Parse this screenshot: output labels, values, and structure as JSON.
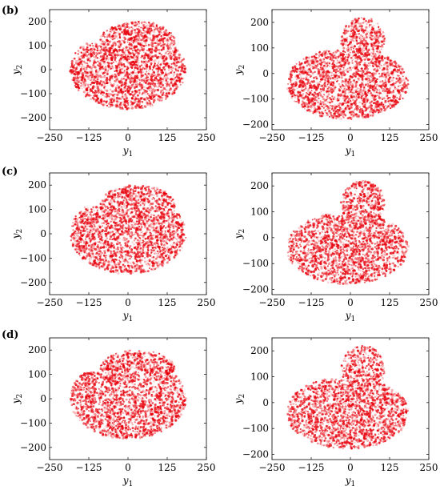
{
  "panel_labels": [
    "(b)",
    "(c)",
    "(d)"
  ],
  "chart_data": [
    {
      "type": "scatter",
      "panel": "(b)",
      "variant": 0,
      "title": "",
      "xlabel": "y",
      "xlabel_sub": "1",
      "ylabel": "y",
      "ylabel_sub": "2",
      "xlim": [
        -250,
        250
      ],
      "ylim": [
        -250,
        250
      ],
      "xticks": [
        "-250",
        "-125",
        "0",
        "125",
        "250"
      ],
      "yticks": [
        "-200",
        "-100",
        "0",
        "100",
        "200"
      ],
      "color": "#e8000b",
      "grid": false,
      "n_points": 2200
    },
    {
      "type": "scatter",
      "panel": "(b)",
      "variant": 1,
      "title": "",
      "xlabel": "y",
      "xlabel_sub": "1",
      "ylabel": "y",
      "ylabel_sub": "2",
      "xlim": [
        -250,
        250
      ],
      "ylim": [
        -220,
        250
      ],
      "xticks": [
        "-250",
        "-125",
        "0",
        "125",
        "250"
      ],
      "yticks": [
        "-200",
        "-100",
        "0",
        "100",
        "200"
      ],
      "color": "#e8000b",
      "grid": false,
      "n_points": 2200
    },
    {
      "type": "scatter",
      "panel": "(c)",
      "variant": 0,
      "title": "",
      "xlabel": "y",
      "xlabel_sub": "1",
      "ylabel": "y",
      "ylabel_sub": "2",
      "xlim": [
        -250,
        250
      ],
      "ylim": [
        -250,
        250
      ],
      "xticks": [
        "-250",
        "-125",
        "0",
        "125",
        "250"
      ],
      "yticks": [
        "-200",
        "-100",
        "0",
        "100",
        "200"
      ],
      "color": "#e8000b",
      "grid": false,
      "n_points": 2200
    },
    {
      "type": "scatter",
      "panel": "(c)",
      "variant": 1,
      "title": "",
      "xlabel": "y",
      "xlabel_sub": "1",
      "ylabel": "y",
      "ylabel_sub": "2",
      "xlim": [
        -250,
        250
      ],
      "ylim": [
        -220,
        250
      ],
      "xticks": [
        "-250",
        "-125",
        "0",
        "125",
        "250"
      ],
      "yticks": [
        "-200",
        "-100",
        "0",
        "100",
        "200"
      ],
      "color": "#e8000b",
      "grid": false,
      "n_points": 2200
    },
    {
      "type": "scatter",
      "panel": "(d)",
      "variant": 0,
      "title": "",
      "xlabel": "y",
      "xlabel_sub": "1",
      "ylabel": "y",
      "ylabel_sub": "2",
      "xlim": [
        -250,
        250
      ],
      "ylim": [
        -250,
        250
      ],
      "xticks": [
        "-250",
        "-125",
        "0",
        "125",
        "250"
      ],
      "yticks": [
        "-200",
        "-100",
        "0",
        "100",
        "200"
      ],
      "color": "#e8000b",
      "grid": false,
      "n_points": 2200
    },
    {
      "type": "scatter",
      "panel": "(d)",
      "variant": 1,
      "title": "",
      "xlabel": "y",
      "xlabel_sub": "1",
      "ylabel": "y",
      "ylabel_sub": "2",
      "xlim": [
        -250,
        250
      ],
      "ylim": [
        -220,
        250
      ],
      "xticks": [
        "-250",
        "-125",
        "0",
        "125",
        "250"
      ],
      "yticks": [
        "-200",
        "-100",
        "0",
        "100",
        "200"
      ],
      "color": "#e8000b",
      "grid": false,
      "n_points": 2200
    }
  ]
}
